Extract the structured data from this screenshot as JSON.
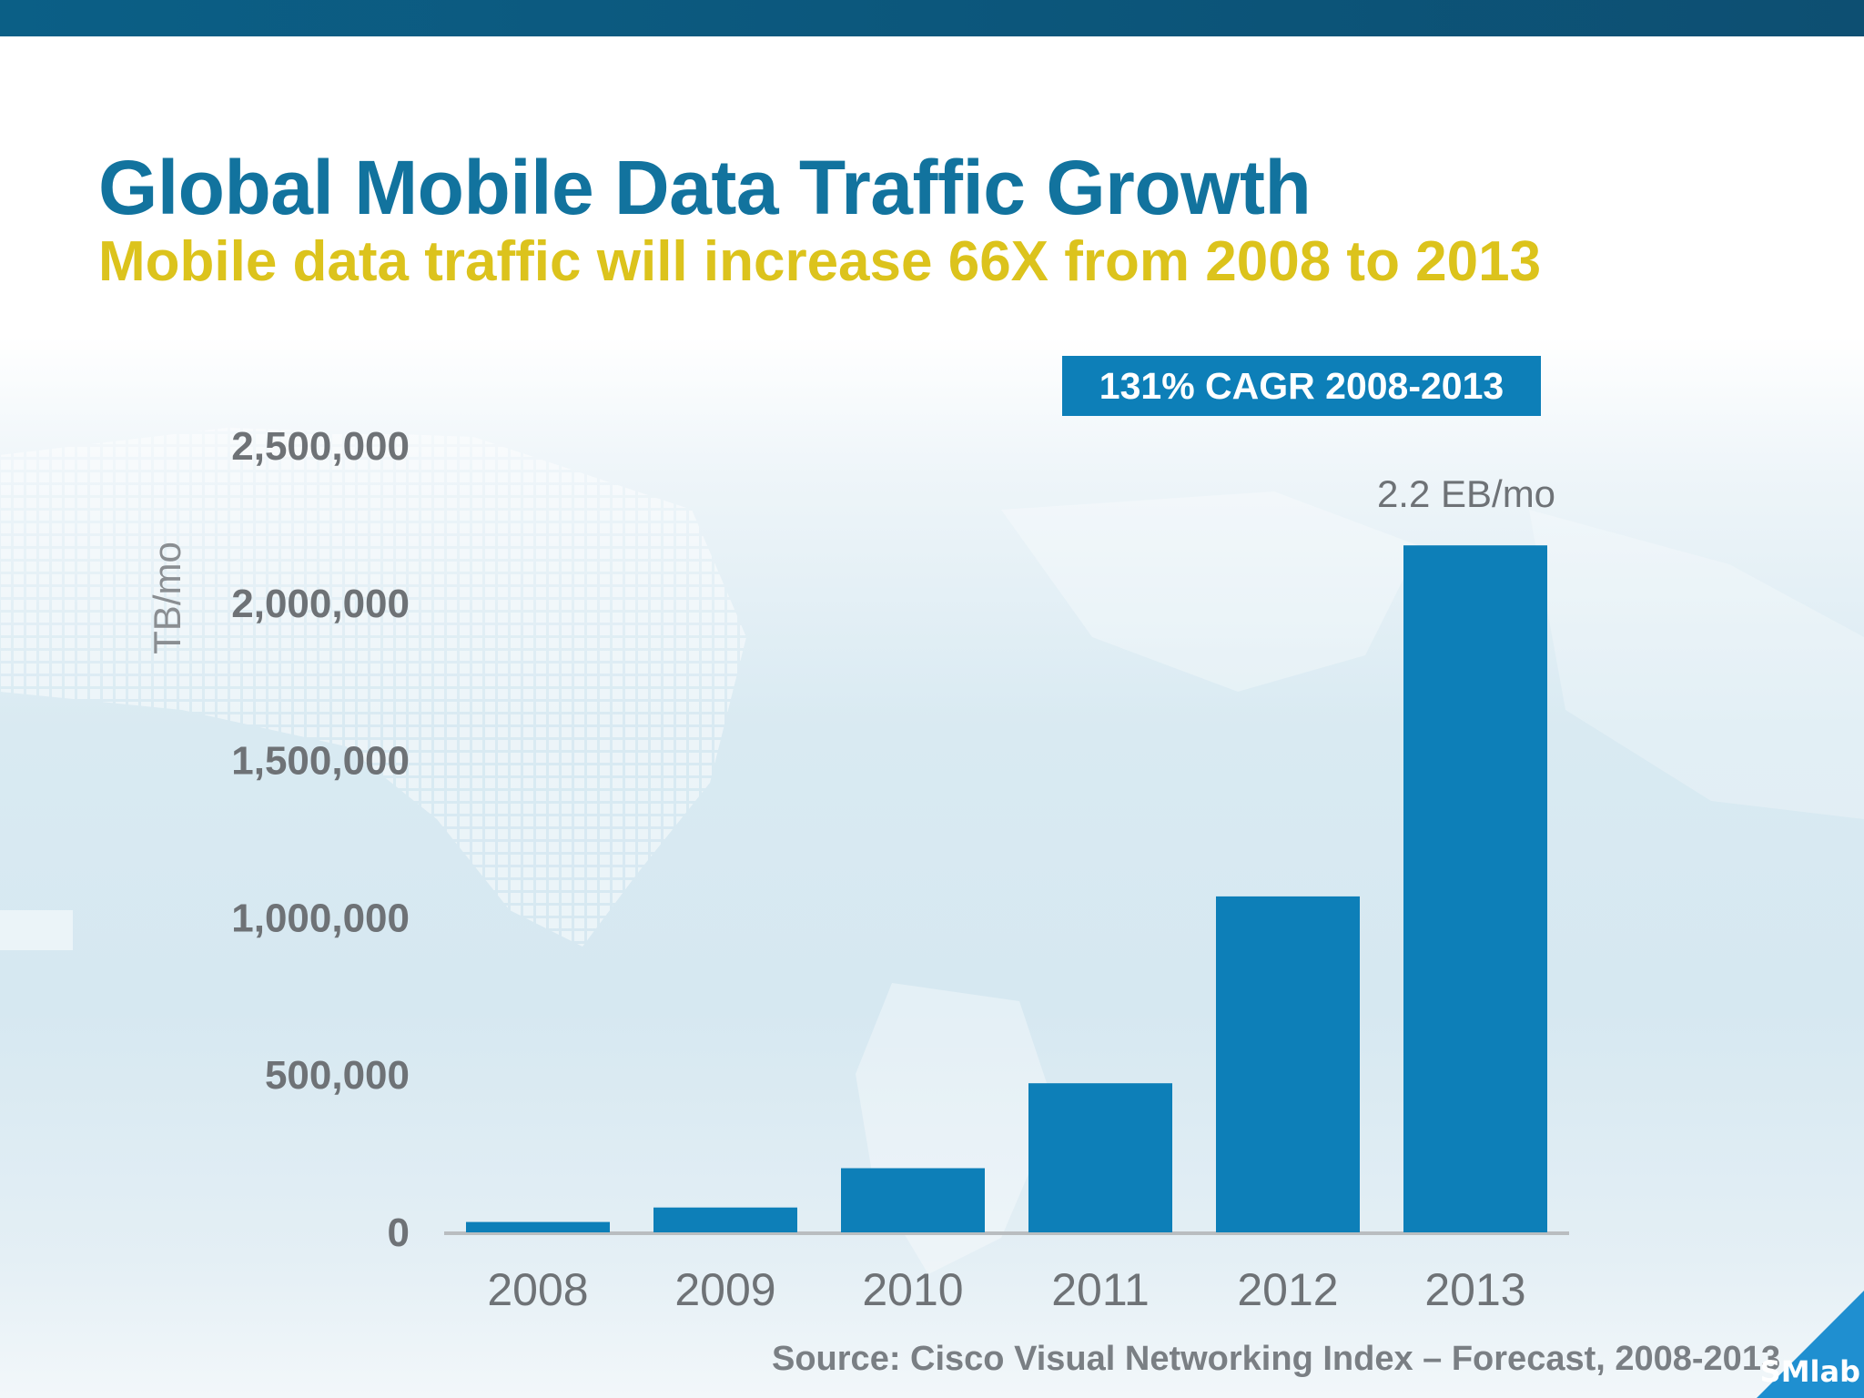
{
  "slide": {
    "title": "Global Mobile Data Traffic Growth",
    "subtitle": "Mobile data traffic will increase 66X from 2008 to 2013",
    "badge": "131% CAGR 2008-2013",
    "source": "Source: Cisco Visual Networking Index – Forecast, 2008-2013",
    "corner_label": "SMlab"
  },
  "colors": {
    "title": "#12739e",
    "subtitle": "#dcc31c",
    "bar": "#0d7fb8",
    "axis_text": "#6e7276"
  },
  "chart_data": {
    "type": "bar",
    "title": "",
    "xlabel": "",
    "ylabel": "TB/mo",
    "categories": [
      "2008",
      "2009",
      "2010",
      "2011",
      "2012",
      "2013"
    ],
    "values": [
      33000,
      79000,
      204000,
      474000,
      1068000,
      2184000
    ],
    "ylim": [
      0,
      2500000
    ],
    "yticks": [
      "0",
      "500,000",
      "1,000,000",
      "1,500,000",
      "2,000,000",
      "2,500,000"
    ],
    "ytick_values": [
      0,
      500000,
      1000000,
      1500000,
      2000000,
      2500000
    ],
    "annotations": [
      {
        "category": "2013",
        "text": "2.2 EB/mo"
      }
    ],
    "grid": false,
    "legend": "none"
  }
}
